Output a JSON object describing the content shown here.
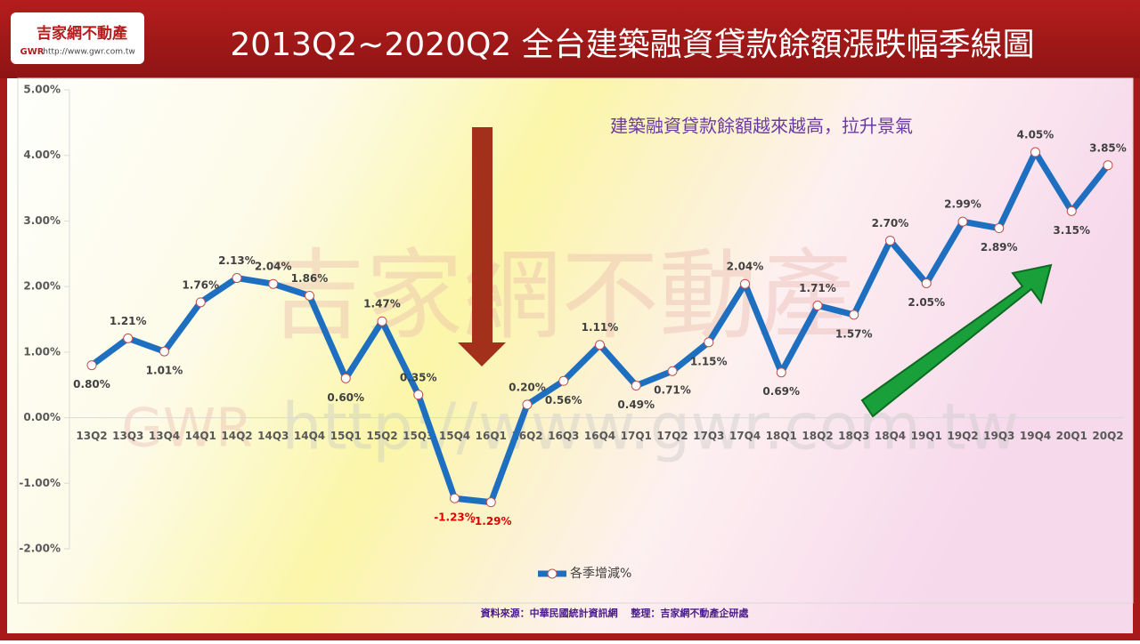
{
  "header": {
    "logo_name": "吉家網不動產",
    "logo_abbr": "GWR",
    "logo_url": "http://www.gwr.com.tw"
  },
  "watermark": {
    "name": "吉家網不動產",
    "abbr": "GWR",
    "url": "http://www.gwr.com.tw"
  },
  "chart_data": {
    "type": "line",
    "title": "2013Q2~2020Q2  全台建築融資貸款餘額漲跌幅季線圖",
    "annotation": "建築融資貸款餘額越來越高，拉升景氣",
    "source": "資料來源：中華民國統計資訊網　 整理：吉家網不動產企研處",
    "categories": [
      "13Q2",
      "13Q3",
      "13Q4",
      "14Q1",
      "14Q2",
      "14Q3",
      "14Q4",
      "15Q1",
      "15Q2",
      "15Q3",
      "15Q4",
      "16Q1",
      "16Q2",
      "16Q3",
      "16Q4",
      "17Q1",
      "17Q2",
      "17Q3",
      "17Q4",
      "18Q1",
      "18Q2",
      "18Q3",
      "18Q4",
      "19Q1",
      "19Q2",
      "19Q3",
      "19Q4",
      "20Q1",
      "20Q2"
    ],
    "series": [
      {
        "name": "各季增減%",
        "color": "#1f6fc0",
        "values": [
          0.8,
          1.21,
          1.01,
          1.76,
          2.13,
          2.04,
          1.86,
          0.6,
          1.47,
          0.35,
          -1.23,
          -1.29,
          0.2,
          0.56,
          1.11,
          0.49,
          0.71,
          1.15,
          2.04,
          0.69,
          1.71,
          1.57,
          2.7,
          2.05,
          2.99,
          2.89,
          4.05,
          3.15,
          3.85
        ],
        "value_labels": [
          "0.80%",
          "1.21%",
          "1.01%",
          "1.76%",
          "2.13%",
          "2.04%",
          "1.86%",
          "0.60%",
          "1.47%",
          "0.35%",
          "-1.23%",
          "-1.29%",
          "0.20%",
          "0.56%",
          "1.11%",
          "0.49%",
          "0.71%",
          "1.15%",
          "2.04%",
          "0.69%",
          "1.71%",
          "1.57%",
          "2.70%",
          "2.05%",
          "2.99%",
          "2.89%",
          "4.05%",
          "3.15%",
          "3.85%"
        ]
      }
    ],
    "ylim": [
      -2,
      5
    ],
    "yticks": [
      {
        "value": -2,
        "label": "-2.00%"
      },
      {
        "value": -1,
        "label": "-1.00%"
      },
      {
        "value": 0,
        "label": "0.00%"
      },
      {
        "value": 1,
        "label": "1.00%"
      },
      {
        "value": 2,
        "label": "2.00%"
      },
      {
        "value": 3,
        "label": "3.00%"
      },
      {
        "value": 4,
        "label": "4.00%"
      },
      {
        "value": 5,
        "label": "5.00%"
      }
    ],
    "grid": false,
    "legend": "bottom"
  }
}
